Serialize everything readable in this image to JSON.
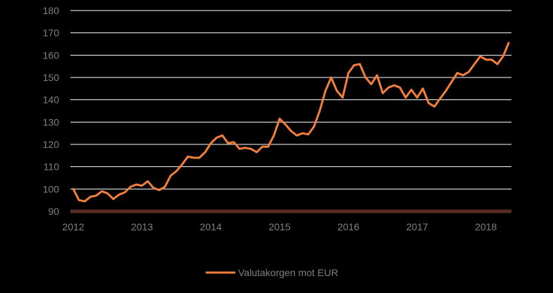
{
  "chart_data": {
    "type": "line",
    "ylim": [
      90,
      180
    ],
    "y_ticks": [
      90,
      100,
      110,
      120,
      130,
      140,
      150,
      160,
      170,
      180
    ],
    "x_tick_labels": [
      "2012",
      "2013",
      "2014",
      "2015",
      "2016",
      "2017",
      "2018"
    ],
    "x_tick_values": [
      2012,
      2013,
      2014,
      2015,
      2016,
      2017,
      2018
    ],
    "xlim": [
      2012,
      2018.33
    ],
    "grid": true,
    "legend_placement": "bottom-center",
    "colors": {
      "series": "#f07f3c",
      "grid": "#ffffff",
      "baseline": "#5a2d24",
      "text": "#7f7f7f",
      "background": "#000000"
    },
    "series": [
      {
        "name": "Valutakorgen mot EUR",
        "x": [
          2012.0,
          2012.083,
          2012.167,
          2012.25,
          2012.333,
          2012.417,
          2012.5,
          2012.583,
          2012.667,
          2012.75,
          2012.833,
          2012.917,
          2013.0,
          2013.083,
          2013.167,
          2013.25,
          2013.333,
          2013.417,
          2013.5,
          2013.583,
          2013.667,
          2013.75,
          2013.833,
          2013.917,
          2014.0,
          2014.083,
          2014.167,
          2014.25,
          2014.333,
          2014.417,
          2014.5,
          2014.583,
          2014.667,
          2014.75,
          2014.833,
          2014.917,
          2015.0,
          2015.083,
          2015.167,
          2015.25,
          2015.333,
          2015.417,
          2015.5,
          2015.583,
          2015.667,
          2015.75,
          2015.833,
          2015.917,
          2016.0,
          2016.083,
          2016.167,
          2016.25,
          2016.333,
          2016.417,
          2016.5,
          2016.583,
          2016.667,
          2016.75,
          2016.833,
          2016.917,
          2017.0,
          2017.083,
          2017.167,
          2017.25,
          2017.333,
          2017.417,
          2017.5,
          2017.583,
          2017.667,
          2017.75,
          2017.833,
          2017.917,
          2018.0,
          2018.083,
          2018.167,
          2018.25,
          2018.33
        ],
        "values": [
          100,
          95,
          94.5,
          96.5,
          97,
          99,
          98,
          95.5,
          97.5,
          98.5,
          101,
          102,
          101.5,
          103.5,
          100.5,
          99.5,
          101,
          106,
          108,
          111,
          114.5,
          114,
          114,
          116.5,
          120.5,
          123,
          124,
          120.5,
          121,
          118,
          118.5,
          118,
          116.5,
          119,
          119,
          124,
          131.5,
          129,
          126,
          124,
          125,
          124.5,
          128,
          135,
          144,
          150,
          144,
          141,
          152,
          155.5,
          156,
          150,
          147,
          151,
          143,
          145.5,
          146.5,
          145.5,
          141,
          144.5,
          141,
          145,
          138.5,
          137,
          140.5,
          144,
          148,
          152,
          151,
          152.5,
          156,
          159.5,
          158,
          158,
          156,
          159.5,
          165.5
        ]
      }
    ]
  }
}
